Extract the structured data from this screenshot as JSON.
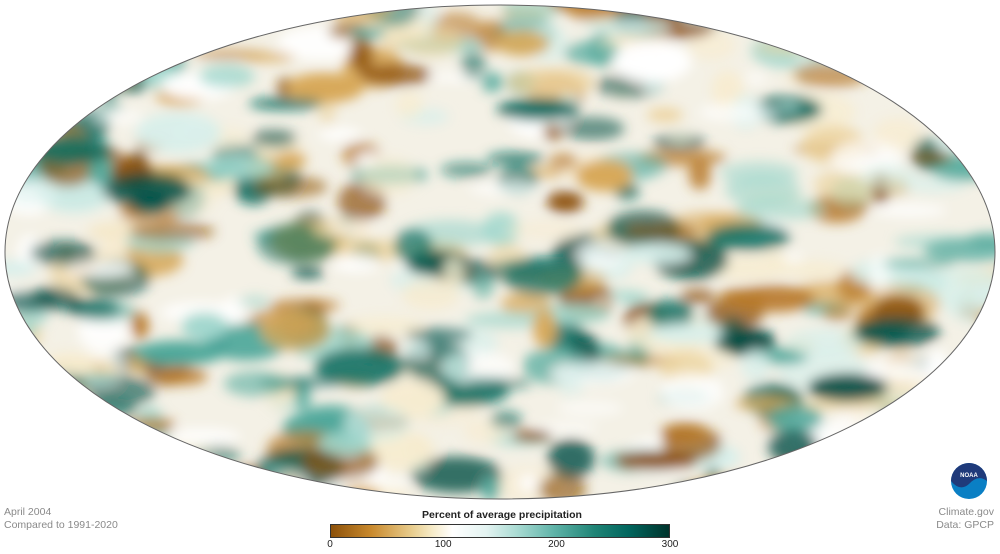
{
  "map": {
    "projection": "Mollweide",
    "colors": {
      "dry": "#8c510a",
      "normal": "#ffffff",
      "wet": "#00332c",
      "outline": "#666666"
    }
  },
  "caption": {
    "date": "April 2004",
    "baseline": "Compared to 1991-2020"
  },
  "credit": {
    "source": "Climate.gov",
    "data": "Data: GPCP",
    "logo": "NOAA"
  },
  "legend": {
    "title": "Percent of average precipitation",
    "min": 0,
    "max": 300,
    "ticks": [
      "0",
      "100",
      "200",
      "300"
    ]
  }
}
